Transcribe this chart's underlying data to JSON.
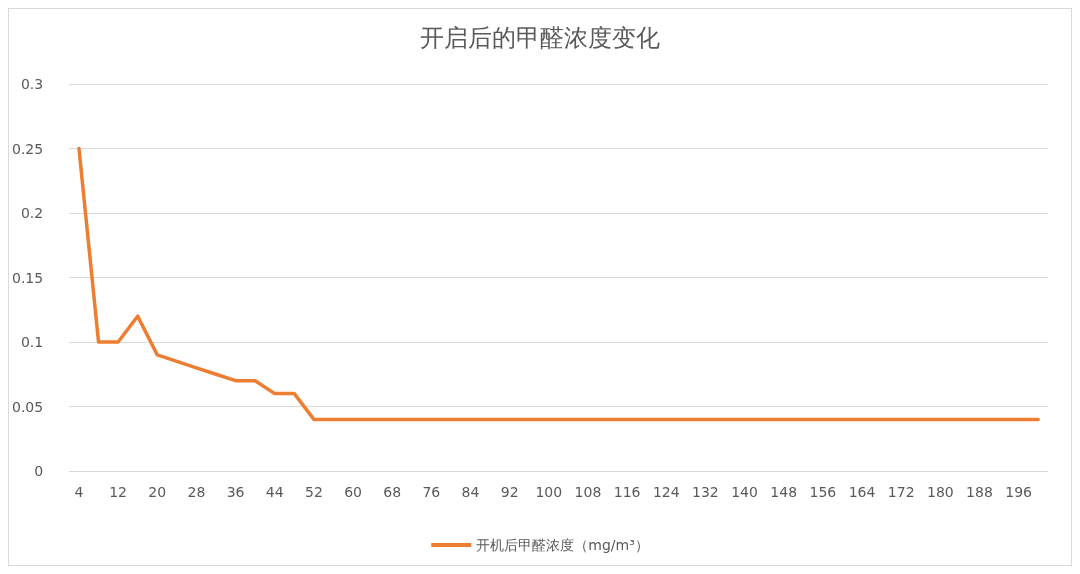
{
  "chart_data": {
    "type": "line",
    "title": "开启后的甲醛浓度变化",
    "categories": [
      "4",
      null,
      "12",
      null,
      "20",
      null,
      "28",
      null,
      "36",
      null,
      "44",
      null,
      "52",
      null,
      "60",
      null,
      "68",
      null,
      "76",
      null,
      "84",
      null,
      "92",
      null,
      "100",
      null,
      "108",
      null,
      "116",
      null,
      "124",
      null,
      "132",
      null,
      "140",
      null,
      "148",
      null,
      "156",
      null,
      "164",
      null,
      "172",
      null,
      "180",
      null,
      "188",
      null,
      "196",
      null
    ],
    "series": [
      {
        "name": "开机后甲醛浓度（mg/m³）",
        "color": "#ed7d31",
        "values": [
          0.25,
          0.1,
          0.1,
          0.12,
          0.09,
          0.085,
          0.08,
          0.075,
          0.07,
          0.07,
          0.06,
          0.06,
          0.04,
          0.04,
          0.04,
          0.04,
          0.04,
          0.04,
          0.04,
          0.04,
          0.04,
          0.04,
          0.04,
          0.04,
          0.04,
          0.04,
          0.04,
          0.04,
          0.04,
          0.04,
          0.04,
          0.04,
          0.04,
          0.04,
          0.04,
          0.04,
          0.04,
          0.04,
          0.04,
          0.04,
          0.04,
          0.04,
          0.04,
          0.04,
          0.04,
          0.04,
          0.04,
          0.04,
          0.04,
          0.04
        ]
      }
    ],
    "ylim": [
      0,
      0.3
    ],
    "yticks": [
      0,
      0.05,
      0.1,
      0.15,
      0.2,
      0.25,
      0.3
    ],
    "grid": "y",
    "legend": "bottom",
    "marker": "none",
    "line_style": "solid"
  }
}
